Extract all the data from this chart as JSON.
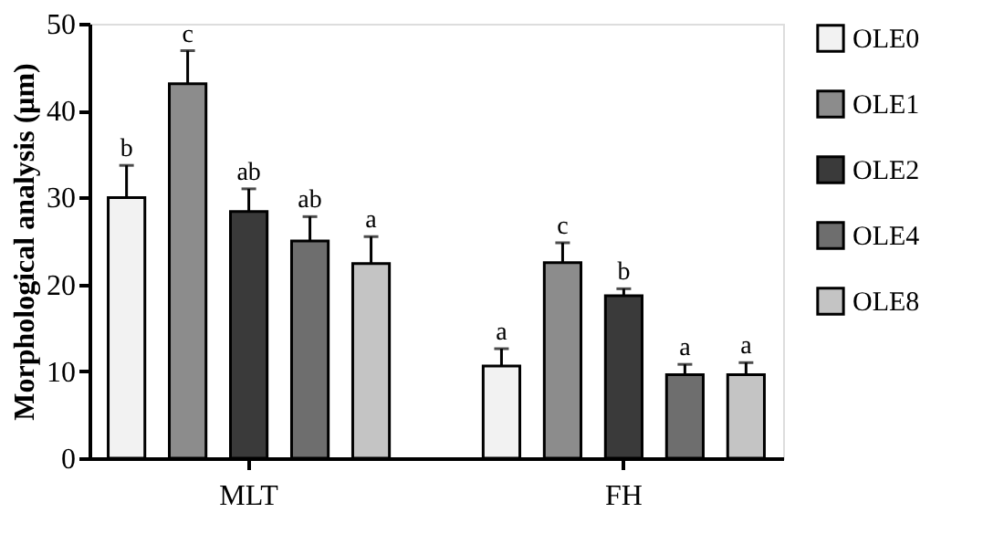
{
  "chart_data": {
    "type": "bar",
    "ylabel": "Morphological analysis (μm)",
    "categories": [
      "MLT",
      "FH"
    ],
    "series": [
      {
        "name": "OLE0",
        "color": "#f2f2f2",
        "values": [
          30.0,
          10.6
        ],
        "errors": [
          [
            30.0,
            33.7
          ],
          [
            10.6,
            12.6
          ]
        ]
      },
      {
        "name": "OLE1",
        "color": "#8c8c8c",
        "values": [
          43.1,
          22.5
        ],
        "errors": [
          [
            43.1,
            46.9
          ],
          [
            22.5,
            24.8
          ]
        ]
      },
      {
        "name": "OLE2",
        "color": "#3a3a3a",
        "values": [
          28.4,
          18.7
        ],
        "errors": [
          [
            28.4,
            31.0
          ],
          [
            18.7,
            19.5
          ]
        ]
      },
      {
        "name": "OLE4",
        "color": "#6e6e6e",
        "values": [
          25.0,
          9.6
        ],
        "errors": [
          [
            25.0,
            27.8
          ],
          [
            9.6,
            10.8
          ]
        ]
      },
      {
        "name": "OLE8",
        "color": "#c4c4c4",
        "values": [
          22.4,
          9.6
        ],
        "errors": [
          [
            22.4,
            25.5
          ],
          [
            9.6,
            11.0
          ]
        ]
      }
    ],
    "annotations": [
      "b",
      "c",
      "ab",
      "ab",
      "a",
      "a",
      "c",
      "b",
      "a",
      "a"
    ],
    "ylim": [
      0,
      50
    ],
    "yticks": [
      0,
      10,
      20,
      30,
      40,
      50
    ],
    "grid": false,
    "legend": "right"
  }
}
